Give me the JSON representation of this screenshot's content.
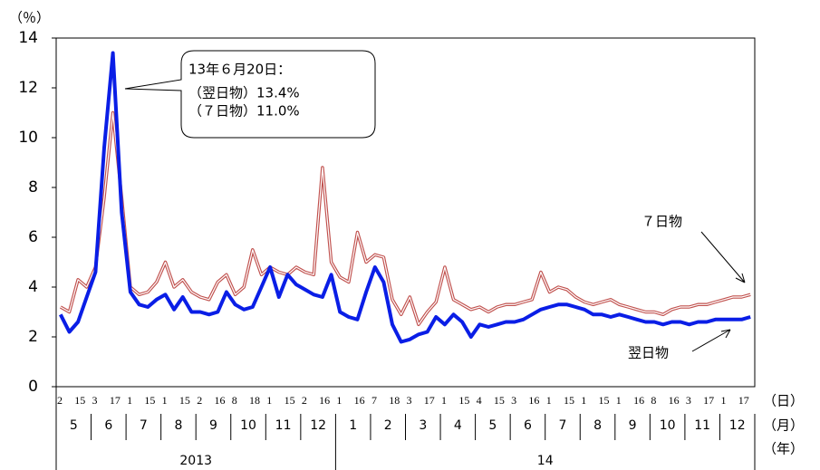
{
  "chart_data": {
    "type": "line",
    "y_unit": "（％）",
    "x_units": [
      "（日）",
      "（月）",
      "（年）"
    ],
    "categories": [
      "2",
      null,
      "15",
      null,
      "3",
      null,
      "17",
      null,
      "1",
      null,
      "15",
      null,
      "1",
      null,
      "15",
      null,
      "2",
      null,
      "16",
      null,
      "8",
      null,
      "18",
      null,
      "1",
      null,
      "15",
      null,
      "2",
      null,
      "16",
      null,
      "1",
      null,
      "16",
      null,
      "7",
      null,
      "18",
      null,
      "3",
      null,
      "17",
      null,
      "1",
      null,
      "15",
      null,
      "4",
      null,
      "15",
      null,
      "3",
      null,
      "16",
      null,
      "1",
      null,
      "15",
      null,
      "1",
      null,
      "15",
      null,
      "1",
      null,
      "16",
      null,
      "8",
      null,
      "16",
      null,
      "3",
      null,
      "17",
      null,
      "1",
      null,
      "17",
      null
    ],
    "years": [
      {
        "name": "2013",
        "months": [
          "5",
          "6",
          "7",
          "8",
          "9",
          "10",
          "11",
          "12"
        ]
      },
      {
        "name": "14",
        "months": [
          "1",
          "2",
          "3",
          "4",
          "5",
          "6",
          "7",
          "8",
          "9",
          "10",
          "11",
          "12"
        ]
      }
    ],
    "series": [
      {
        "name": "７日物",
        "color": "#c0504d",
        "values": [
          3.2,
          3.0,
          4.3,
          4.0,
          4.8,
          7.6,
          11.0,
          7.6,
          4.0,
          3.7,
          3.8,
          4.2,
          5.0,
          4.0,
          4.3,
          3.8,
          3.6,
          3.5,
          4.2,
          4.5,
          3.7,
          4.0,
          5.5,
          4.5,
          4.8,
          4.6,
          4.5,
          4.8,
          4.6,
          4.5,
          8.8,
          5.0,
          4.4,
          4.2,
          6.2,
          5.0,
          5.3,
          5.2,
          3.5,
          2.9,
          3.6,
          2.5,
          3.0,
          3.4,
          4.8,
          3.5,
          3.3,
          3.1,
          3.2,
          3.0,
          3.2,
          3.3,
          3.3,
          3.4,
          3.5,
          4.6,
          3.8,
          4.0,
          3.9,
          3.6,
          3.4,
          3.3,
          3.4,
          3.5,
          3.3,
          3.2,
          3.1,
          3.0,
          3.0,
          2.9,
          3.1,
          3.2,
          3.2,
          3.3,
          3.3,
          3.4,
          3.5,
          3.6,
          3.6,
          3.7
        ]
      },
      {
        "name": "翌日物",
        "color": "#0a1ee6",
        "values": [
          2.9,
          2.2,
          2.6,
          3.6,
          4.6,
          9.6,
          13.4,
          7.0,
          3.8,
          3.3,
          3.2,
          3.5,
          3.7,
          3.1,
          3.6,
          3.0,
          3.0,
          2.9,
          3.0,
          3.8,
          3.3,
          3.1,
          3.2,
          4.0,
          4.8,
          3.6,
          4.5,
          4.1,
          3.9,
          3.7,
          3.6,
          4.5,
          3.0,
          2.8,
          2.7,
          3.8,
          4.8,
          4.2,
          2.5,
          1.8,
          1.9,
          2.1,
          2.2,
          2.8,
          2.5,
          2.9,
          2.6,
          2.0,
          2.5,
          2.4,
          2.5,
          2.6,
          2.6,
          2.7,
          2.9,
          3.1,
          3.2,
          3.3,
          3.3,
          3.2,
          3.1,
          2.9,
          2.9,
          2.8,
          2.9,
          2.8,
          2.7,
          2.6,
          2.6,
          2.5,
          2.6,
          2.6,
          2.5,
          2.6,
          2.6,
          2.7,
          2.7,
          2.7,
          2.7,
          2.8
        ]
      }
    ],
    "ylim": [
      0,
      14
    ],
    "yticks": [
      0,
      2,
      4,
      6,
      8,
      10,
      12,
      14
    ],
    "annotation": [
      "13年６月20日：",
      "（翌日物）13.4%",
      "（７日物）11.0%"
    ]
  }
}
